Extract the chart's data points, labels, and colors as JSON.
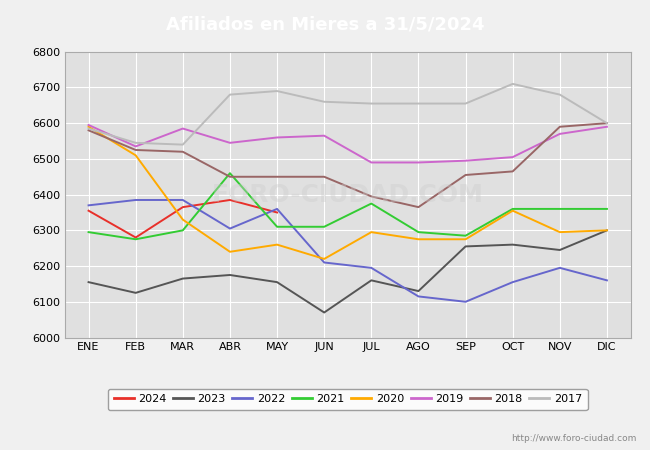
{
  "title": "Afiliados en Mieres a 31/5/2024",
  "months": [
    "ENE",
    "FEB",
    "MAR",
    "ABR",
    "MAY",
    "JUN",
    "JUL",
    "AGO",
    "SEP",
    "OCT",
    "NOV",
    "DIC"
  ],
  "ylim": [
    6000,
    6800
  ],
  "yticks": [
    6000,
    6100,
    6200,
    6300,
    6400,
    6500,
    6600,
    6700,
    6800
  ],
  "series": {
    "2024": {
      "color": "#e8302a",
      "data": [
        6355,
        6280,
        6365,
        6385,
        6350,
        null,
        null,
        null,
        null,
        null,
        null,
        null
      ]
    },
    "2023": {
      "color": "#555555",
      "data": [
        6155,
        6125,
        6165,
        6175,
        6155,
        6070,
        6160,
        6130,
        6255,
        6260,
        6245,
        6300
      ]
    },
    "2022": {
      "color": "#6666cc",
      "data": [
        6370,
        6385,
        6385,
        6305,
        6360,
        6210,
        6195,
        6115,
        6100,
        6155,
        6195,
        6160
      ]
    },
    "2021": {
      "color": "#33cc33",
      "data": [
        6295,
        6275,
        6300,
        6460,
        6310,
        6310,
        6375,
        6295,
        6285,
        6360,
        6360,
        6360
      ]
    },
    "2020": {
      "color": "#ffaa00",
      "data": [
        6590,
        6510,
        6330,
        6240,
        6260,
        6220,
        6295,
        6275,
        6275,
        6355,
        6295,
        6300
      ]
    },
    "2019": {
      "color": "#cc66cc",
      "data": [
        6595,
        6535,
        6585,
        6545,
        6560,
        6565,
        6490,
        6490,
        6495,
        6505,
        6570,
        6590
      ]
    },
    "2018": {
      "color": "#996666",
      "data": [
        6580,
        6525,
        6520,
        6450,
        6450,
        6450,
        6395,
        6365,
        6455,
        6465,
        6590,
        6600
      ]
    },
    "2017": {
      "color": "#bbbbbb",
      "data": [
        6585,
        6545,
        6540,
        6680,
        6690,
        6660,
        6655,
        6655,
        6655,
        6710,
        6680,
        6600
      ]
    }
  },
  "legend_order": [
    "2024",
    "2023",
    "2022",
    "2021",
    "2020",
    "2019",
    "2018",
    "2017"
  ],
  "watermark": "http://www.foro-ciudad.com",
  "fig_bg": "#f0f0f0",
  "plot_bg": "#e0e0e0",
  "grid_color": "#ffffff",
  "title_bg": "#5b8fc9",
  "title_color": "#ffffff",
  "title_fontsize": 13,
  "tick_fontsize": 8,
  "legend_fontsize": 8,
  "line_width": 1.4
}
